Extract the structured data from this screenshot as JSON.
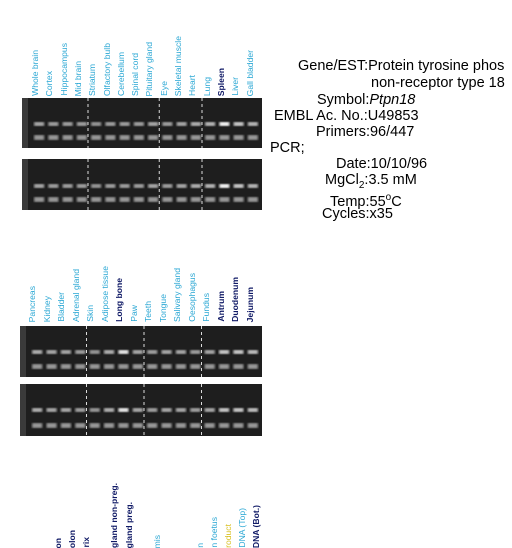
{
  "panel1": {
    "lanes": [
      {
        "label": "Whole brain",
        "color": "cyan"
      },
      {
        "label": "Cortex",
        "color": "cyan"
      },
      {
        "label": "Hippocampus",
        "color": "cyan"
      },
      {
        "label": "Mid brain",
        "color": "cyan"
      },
      {
        "label": "Striatum",
        "color": "cyan"
      },
      {
        "label": "Olfactory bulb",
        "color": "cyan"
      },
      {
        "label": "Cerebellum",
        "color": "cyan"
      },
      {
        "label": "Spinal cord",
        "color": "cyan"
      },
      {
        "label": "Pituitary gland",
        "color": "cyan"
      },
      {
        "label": "Eye",
        "color": "cyan"
      },
      {
        "label": "Skeletal muscle",
        "color": "cyan"
      },
      {
        "label": "Heart",
        "color": "cyan"
      },
      {
        "label": "Lung",
        "color": "cyan"
      },
      {
        "label": "Spleen",
        "color": "navy"
      },
      {
        "label": "Liver",
        "color": "cyan"
      },
      {
        "label": "Gall bladder",
        "color": "cyan"
      }
    ]
  },
  "panel2": {
    "lanes": [
      {
        "label": "Pancreas",
        "color": "cyan"
      },
      {
        "label": "Kidney",
        "color": "cyan"
      },
      {
        "label": "Bladder",
        "color": "cyan"
      },
      {
        "label": "Adrenal gland",
        "color": "cyan"
      },
      {
        "label": "Skin",
        "color": "cyan"
      },
      {
        "label": "Adipose tissue",
        "color": "cyan"
      },
      {
        "label": "Long bone",
        "color": "navy"
      },
      {
        "label": "Paw",
        "color": "cyan"
      },
      {
        "label": "Teeth",
        "color": "cyan"
      },
      {
        "label": "Tongue",
        "color": "cyan"
      },
      {
        "label": "Salivary gland",
        "color": "cyan"
      },
      {
        "label": "Oesophagus",
        "color": "cyan"
      },
      {
        "label": "Fundus",
        "color": "cyan"
      },
      {
        "label": "Antrum",
        "color": "navy"
      },
      {
        "label": "Duodenum",
        "color": "navy"
      },
      {
        "label": "Jejunum",
        "color": "navy"
      }
    ]
  },
  "panel3": {
    "lanes": [
      {
        "label": "",
        "color": "cyan"
      },
      {
        "label": "",
        "color": "cyan"
      },
      {
        "label": "",
        "color": "navy"
      },
      {
        "label": "on",
        "color": "navy"
      },
      {
        "label": "olon",
        "color": "navy"
      },
      {
        "label": "rix",
        "color": "navy"
      },
      {
        "label": "",
        "color": "cyan"
      },
      {
        "label": "gland non-preg.",
        "color": "navy"
      },
      {
        "label": "gland preg.",
        "color": "navy"
      },
      {
        "label": "",
        "color": "cyan"
      },
      {
        "label": "mis",
        "color": "cyan"
      },
      {
        "label": "",
        "color": "cyan"
      },
      {
        "label": "",
        "color": "cyan"
      },
      {
        "label": "n",
        "color": "cyan"
      },
      {
        "label": "n foetus",
        "color": "cyan"
      },
      {
        "label": "roduct",
        "color": "yellow"
      },
      {
        "label": "DNA (Top)",
        "color": "cyan"
      },
      {
        "label": "DNA (Bot.)",
        "color": "navy"
      }
    ]
  },
  "info": {
    "gene_key": "Gene/EST:",
    "gene_value_line1": "Protein tyrosine phos",
    "gene_value_line2": "non-receptor type 18",
    "symbol_key": "Symbol:",
    "symbol_value": "Ptpn18",
    "embl_key": "EMBL Ac. No.:",
    "embl_value": "U49853",
    "primers_key": "Primers:",
    "primers_value": "96/447",
    "pcr_heading": "PCR;",
    "date_key": "Date:",
    "date_value": "10/10/96",
    "mgcl_key_pre": "MgCl",
    "mgcl_key_sub": "2",
    "mgcl_key_post": ":",
    "mgcl_value": "3.5 mM",
    "temp_key": "Temp:",
    "temp_value_num": "55",
    "temp_value_sup": "o",
    "temp_value_unit": "C",
    "cycles_key": "Cycles:",
    "cycles_value": "x35"
  },
  "colors": {
    "cyan": "#2aa7d4",
    "navy": "#101a66",
    "yellow": "#d8c020",
    "gel_bg": "#1e1e1e"
  }
}
